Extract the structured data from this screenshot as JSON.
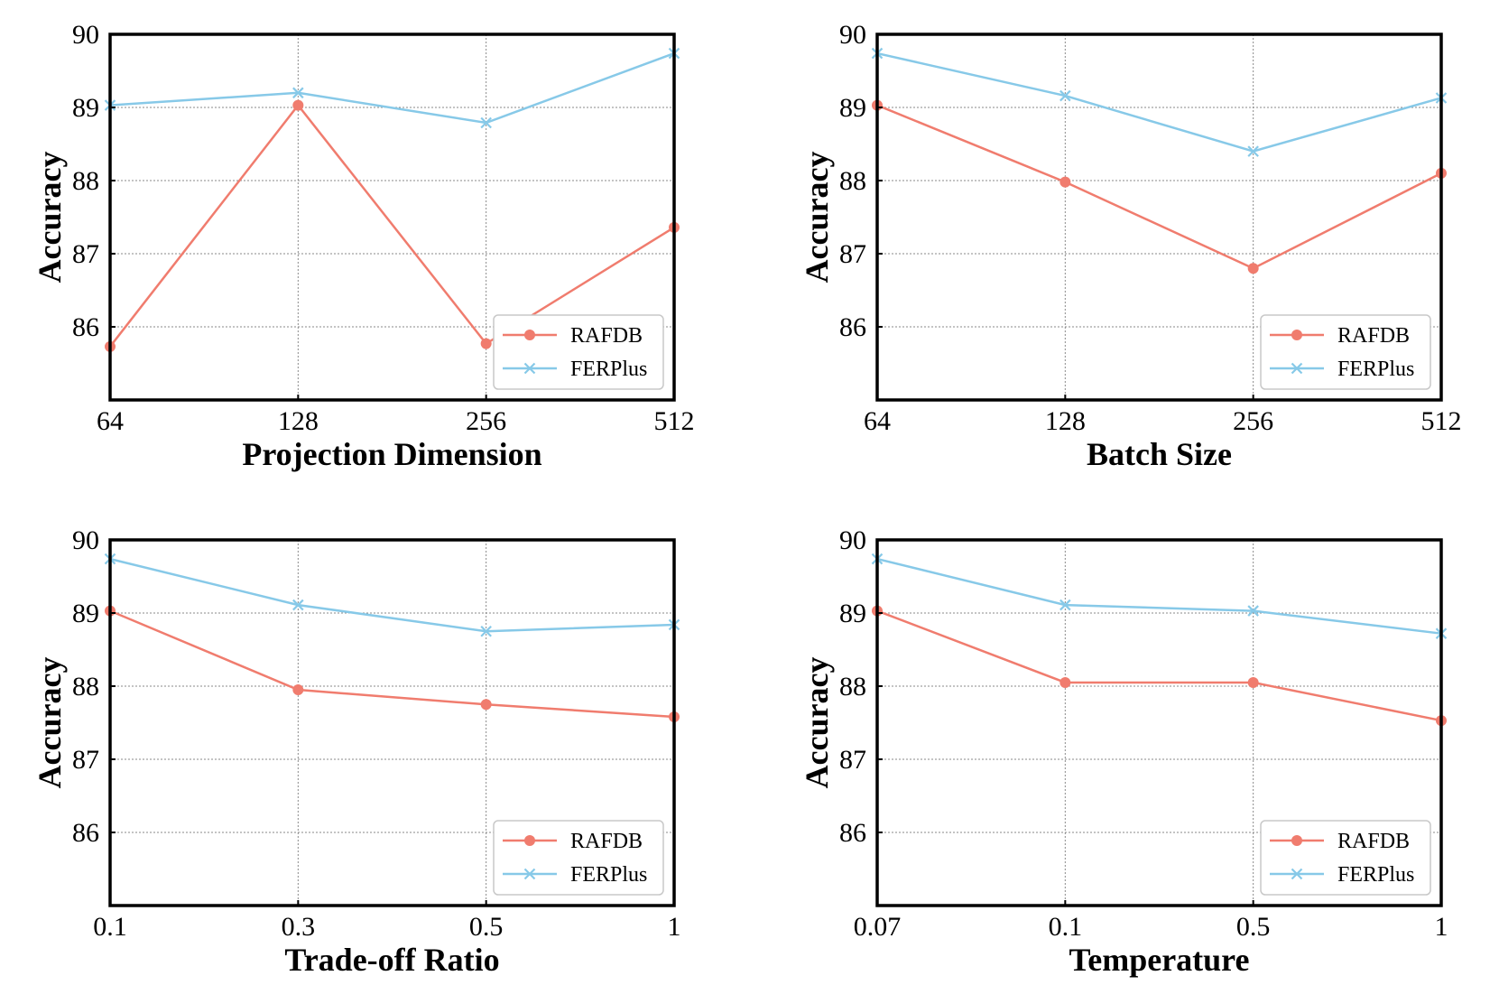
{
  "chart_data": [
    {
      "type": "line",
      "title": "",
      "xlabel": "Projection Dimension",
      "ylabel": "Accuracy",
      "categories": [
        "64",
        "128",
        "256",
        "512"
      ],
      "ylim": [
        85,
        90
      ],
      "yticks": [
        86,
        87,
        88,
        89,
        90
      ],
      "grid": true,
      "legend": "bottom-right",
      "series": [
        {
          "name": "RAFDB",
          "color": "#f07c6e",
          "marker": "circle",
          "values": [
            85.73,
            89.03,
            85.77,
            87.36
          ]
        },
        {
          "name": "FERPlus",
          "color": "#87c9e8",
          "marker": "x",
          "values": [
            89.03,
            89.2,
            88.79,
            89.74
          ]
        }
      ]
    },
    {
      "type": "line",
      "title": "",
      "xlabel": "Batch Size",
      "ylabel": "Accuracy",
      "categories": [
        "64",
        "128",
        "256",
        "512"
      ],
      "ylim": [
        85,
        90
      ],
      "yticks": [
        86,
        87,
        88,
        89,
        90
      ],
      "grid": true,
      "legend": "bottom-right",
      "series": [
        {
          "name": "RAFDB",
          "color": "#f07c6e",
          "marker": "circle",
          "values": [
            89.03,
            87.98,
            86.8,
            88.1
          ]
        },
        {
          "name": "FERPlus",
          "color": "#87c9e8",
          "marker": "x",
          "values": [
            89.74,
            89.16,
            88.4,
            89.13
          ]
        }
      ]
    },
    {
      "type": "line",
      "title": "",
      "xlabel": "Trade-off Ratio",
      "ylabel": "Accuracy",
      "categories": [
        "0.1",
        "0.3",
        "0.5",
        "1"
      ],
      "ylim": [
        85,
        90
      ],
      "yticks": [
        86,
        87,
        88,
        89,
        90
      ],
      "grid": true,
      "legend": "bottom-right",
      "series": [
        {
          "name": "RAFDB",
          "color": "#f07c6e",
          "marker": "circle",
          "values": [
            89.03,
            87.95,
            87.75,
            87.58
          ]
        },
        {
          "name": "FERPlus",
          "color": "#87c9e8",
          "marker": "x",
          "values": [
            89.74,
            89.11,
            88.75,
            88.84
          ]
        }
      ]
    },
    {
      "type": "line",
      "title": "",
      "xlabel": "Temperature",
      "ylabel": "Accuracy",
      "categories": [
        "0.07",
        "0.1",
        "0.5",
        "1"
      ],
      "ylim": [
        85,
        90
      ],
      "yticks": [
        86,
        87,
        88,
        89,
        90
      ],
      "grid": true,
      "legend": "bottom-right",
      "series": [
        {
          "name": "RAFDB",
          "color": "#f07c6e",
          "marker": "circle",
          "values": [
            89.03,
            88.05,
            88.05,
            87.53
          ]
        },
        {
          "name": "FERPlus",
          "color": "#87c9e8",
          "marker": "x",
          "values": [
            89.74,
            89.11,
            89.03,
            88.72
          ]
        }
      ]
    }
  ]
}
